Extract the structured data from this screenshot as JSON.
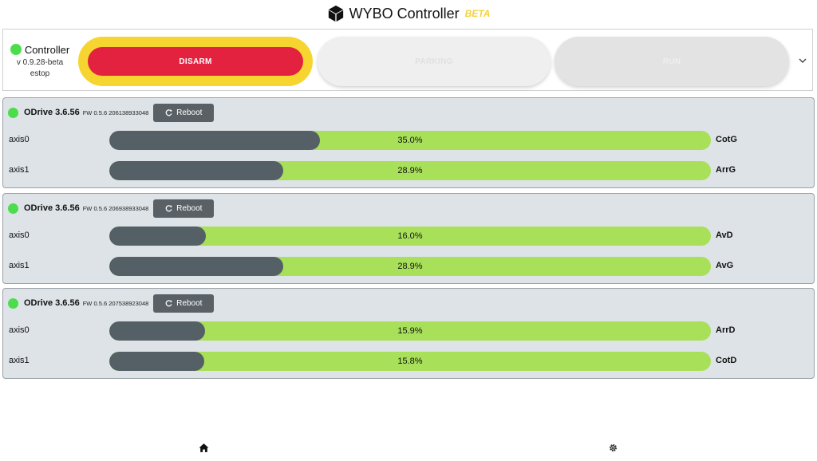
{
  "header": {
    "title": "WYBO Controller",
    "badge": "BETA"
  },
  "controller": {
    "name": "Controller",
    "version": "v 0.9.28-beta",
    "state": "estop",
    "status_color": "#4cdd4c",
    "modes": {
      "disarm": "DISARM",
      "parking": "PARKING",
      "run": "RUN"
    }
  },
  "drives": [
    {
      "name": "ODrive 3.6.56",
      "fw": "FW 0.5.6  206138933048",
      "reboot": "Reboot",
      "axes": [
        {
          "label": "axis0",
          "percent_text": "35.0%",
          "value": 0.35,
          "name": "CotG"
        },
        {
          "label": "axis1",
          "percent_text": "28.9%",
          "value": 0.289,
          "name": "ArrG"
        }
      ]
    },
    {
      "name": "ODrive 3.6.56",
      "fw": "FW 0.5.6  206938933048",
      "reboot": "Reboot",
      "axes": [
        {
          "label": "axis0",
          "percent_text": "16.0%",
          "value": 0.16,
          "name": "AvD"
        },
        {
          "label": "axis1",
          "percent_text": "28.9%",
          "value": 0.289,
          "name": "AvG"
        }
      ]
    },
    {
      "name": "ODrive 3.6.56",
      "fw": "FW 0.5.6  207538923048",
      "reboot": "Reboot",
      "axes": [
        {
          "label": "axis0",
          "percent_text": "15.9%",
          "value": 0.159,
          "name": "ArrD"
        },
        {
          "label": "axis1",
          "percent_text": "15.8%",
          "value": 0.158,
          "name": "CotD"
        }
      ]
    }
  ],
  "nav": {
    "home_icon": "home-icon",
    "settings_icon": "gear-icon"
  }
}
